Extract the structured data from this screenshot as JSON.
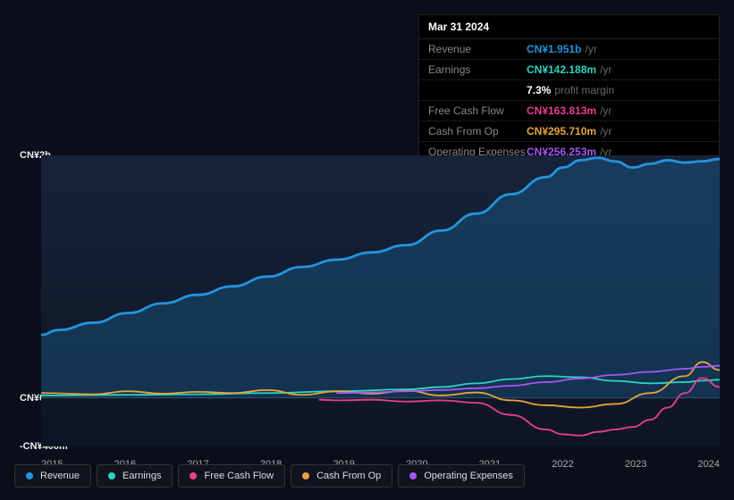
{
  "tooltip": {
    "date": "Mar 31 2024",
    "rows": [
      {
        "label": "Revenue",
        "value": "CN¥1.951b",
        "suffix": "/yr",
        "color": "#2394df"
      },
      {
        "label": "Earnings",
        "value": "CN¥142.188m",
        "suffix": "/yr",
        "color": "#2dd4bf"
      },
      {
        "label": "",
        "value": "7.3%",
        "suffix": "profit margin",
        "color": "#ffffff"
      },
      {
        "label": "Free Cash Flow",
        "value": "CN¥163.813m",
        "suffix": "/yr",
        "color": "#eb3f8f"
      },
      {
        "label": "Cash From Op",
        "value": "CN¥295.710m",
        "suffix": "/yr",
        "color": "#e8a33d"
      },
      {
        "label": "Operating Expenses",
        "value": "CN¥256.253m",
        "suffix": "/yr",
        "color": "#a855f7"
      }
    ]
  },
  "chart": {
    "type": "line",
    "background_color": "#0a0e1a",
    "plot_bg": "linear-gradient(180deg, #16233a 0%, #0d1524 100%)",
    "grid_color": "#1a2332",
    "ylim": [
      -400,
      2000
    ],
    "y_ticks": [
      {
        "v": 2000,
        "label": "CN¥2b"
      },
      {
        "v": 0,
        "label": "CN¥0"
      },
      {
        "v": -400,
        "label": "-CN¥400m"
      }
    ],
    "x_categories": [
      "2015",
      "2016",
      "2017",
      "2018",
      "2019",
      "2020",
      "2021",
      "2022",
      "2023",
      "2024"
    ],
    "x_domain": [
      2014.75,
      2024.5
    ],
    "series": [
      {
        "name": "Revenue",
        "color": "#2394df",
        "width": 2.8,
        "area": true,
        "area_opacity": 0.22,
        "points": [
          [
            2014.75,
            520
          ],
          [
            2015.0,
            560
          ],
          [
            2015.5,
            620
          ],
          [
            2016.0,
            700
          ],
          [
            2016.5,
            780
          ],
          [
            2017.0,
            850
          ],
          [
            2017.5,
            920
          ],
          [
            2018.0,
            1000
          ],
          [
            2018.5,
            1080
          ],
          [
            2019.0,
            1140
          ],
          [
            2019.5,
            1200
          ],
          [
            2020.0,
            1260
          ],
          [
            2020.5,
            1380
          ],
          [
            2021.0,
            1520
          ],
          [
            2021.5,
            1680
          ],
          [
            2022.0,
            1820
          ],
          [
            2022.25,
            1900
          ],
          [
            2022.5,
            1960
          ],
          [
            2022.75,
            1980
          ],
          [
            2023.0,
            1950
          ],
          [
            2023.25,
            1900
          ],
          [
            2023.5,
            1930
          ],
          [
            2023.75,
            1960
          ],
          [
            2024.0,
            1940
          ],
          [
            2024.25,
            1951
          ],
          [
            2024.5,
            1970
          ]
        ]
      },
      {
        "name": "Earnings",
        "color": "#2dd4bf",
        "width": 1.8,
        "points": [
          [
            2014.75,
            20
          ],
          [
            2016.0,
            25
          ],
          [
            2017.0,
            30
          ],
          [
            2018.0,
            40
          ],
          [
            2019.0,
            55
          ],
          [
            2020.0,
            70
          ],
          [
            2020.5,
            90
          ],
          [
            2021.0,
            120
          ],
          [
            2021.5,
            155
          ],
          [
            2022.0,
            180
          ],
          [
            2022.5,
            170
          ],
          [
            2023.0,
            140
          ],
          [
            2023.5,
            120
          ],
          [
            2024.0,
            130
          ],
          [
            2024.25,
            142
          ],
          [
            2024.5,
            150
          ]
        ]
      },
      {
        "name": "Free Cash Flow",
        "color": "#eb3f8f",
        "width": 1.8,
        "points": [
          [
            2018.75,
            -15
          ],
          [
            2019.0,
            -20
          ],
          [
            2019.5,
            -15
          ],
          [
            2020.0,
            -30
          ],
          [
            2020.5,
            -20
          ],
          [
            2021.0,
            -40
          ],
          [
            2021.5,
            -140
          ],
          [
            2022.0,
            -260
          ],
          [
            2022.25,
            -300
          ],
          [
            2022.5,
            -310
          ],
          [
            2022.75,
            -280
          ],
          [
            2023.0,
            -260
          ],
          [
            2023.25,
            -240
          ],
          [
            2023.5,
            -180
          ],
          [
            2023.75,
            -80
          ],
          [
            2024.0,
            40
          ],
          [
            2024.25,
            164
          ],
          [
            2024.5,
            90
          ]
        ]
      },
      {
        "name": "Cash From Op",
        "color": "#e8a33d",
        "width": 1.8,
        "points": [
          [
            2014.75,
            40
          ],
          [
            2015.5,
            30
          ],
          [
            2016.0,
            55
          ],
          [
            2016.5,
            35
          ],
          [
            2017.0,
            50
          ],
          [
            2017.5,
            40
          ],
          [
            2018.0,
            65
          ],
          [
            2018.5,
            25
          ],
          [
            2019.0,
            55
          ],
          [
            2019.5,
            35
          ],
          [
            2020.0,
            60
          ],
          [
            2020.5,
            20
          ],
          [
            2021.0,
            45
          ],
          [
            2021.5,
            -20
          ],
          [
            2022.0,
            -60
          ],
          [
            2022.5,
            -80
          ],
          [
            2023.0,
            -50
          ],
          [
            2023.5,
            40
          ],
          [
            2024.0,
            180
          ],
          [
            2024.25,
            296
          ],
          [
            2024.5,
            230
          ]
        ]
      },
      {
        "name": "Operating Expenses",
        "color": "#a855f7",
        "width": 1.8,
        "points": [
          [
            2019.0,
            40
          ],
          [
            2019.5,
            45
          ],
          [
            2020.0,
            55
          ],
          [
            2020.5,
            65
          ],
          [
            2021.0,
            80
          ],
          [
            2021.5,
            100
          ],
          [
            2022.0,
            130
          ],
          [
            2022.5,
            160
          ],
          [
            2023.0,
            190
          ],
          [
            2023.5,
            215
          ],
          [
            2024.0,
            240
          ],
          [
            2024.25,
            256
          ],
          [
            2024.5,
            265
          ]
        ]
      }
    ],
    "legend": [
      {
        "label": "Revenue",
        "color": "#2394df"
      },
      {
        "label": "Earnings",
        "color": "#2dd4bf"
      },
      {
        "label": "Free Cash Flow",
        "color": "#eb3f8f"
      },
      {
        "label": "Cash From Op",
        "color": "#e8a33d"
      },
      {
        "label": "Operating Expenses",
        "color": "#a855f7"
      }
    ]
  }
}
